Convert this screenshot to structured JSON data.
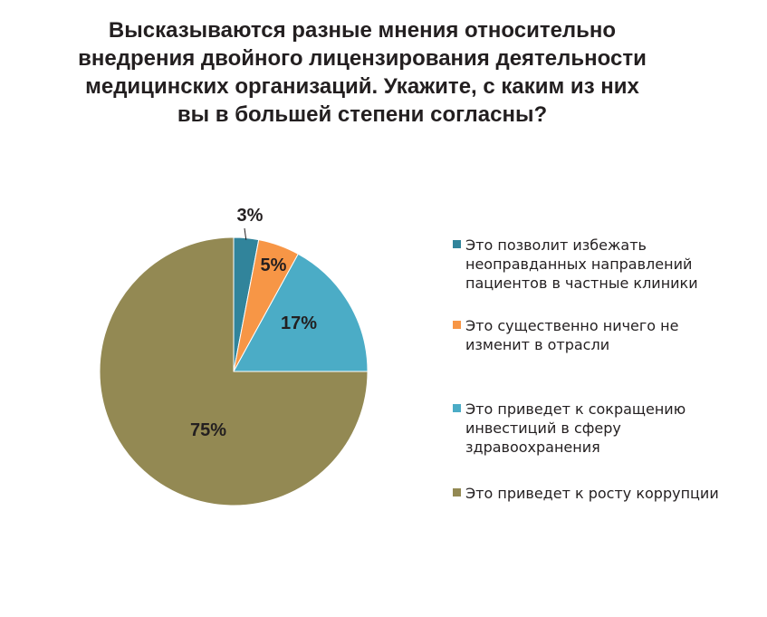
{
  "title_lines": [
    "Высказываются разные мнения относительно",
    "внедрения двойного лицензирования деятельности",
    "медицинских организаций. Укажите, с каким из них",
    "вы в большей степени согласны?"
  ],
  "chart_data": {
    "type": "pie",
    "slices": [
      {
        "label_lines": [
          "Это позволит избежать",
          "неоправданных направлений",
          "пациентов в частные клиники"
        ],
        "value": 3,
        "display": "3%",
        "color": "#31849b"
      },
      {
        "label_lines": [
          "Это существенно ничего не",
          "изменит в отрасли"
        ],
        "value": 5,
        "display": "5%",
        "color": "#f79646"
      },
      {
        "label_lines": [
          "Это приведет к сокращению",
          "инвестиций в сферу",
          "здравоохранения"
        ],
        "value": 17,
        "display": "17%",
        "color": "#4bacc6"
      },
      {
        "label_lines": [
          "Это приведет к росту коррупции"
        ],
        "value": 75,
        "display": "75%",
        "color": "#938953"
      }
    ],
    "start": "12 o'clock",
    "direction": "clockwise",
    "legend_position": "right"
  }
}
